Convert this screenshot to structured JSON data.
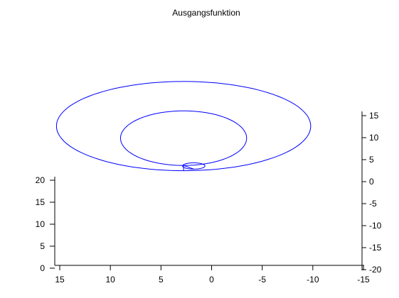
{
  "chart_data": {
    "type": "line",
    "title": "Ausgangsfunktion",
    "projection": "3d",
    "axes": {
      "x": {
        "ticks": [
          15,
          10,
          5,
          0,
          -5,
          -10,
          -15
        ],
        "range": [
          15,
          -15
        ]
      },
      "y": {
        "ticks": [
          0,
          5,
          10,
          15,
          20
        ],
        "range": [
          0,
          20
        ]
      },
      "z": {
        "ticks": [
          15,
          10,
          5,
          0,
          -5,
          -10,
          -15,
          -20
        ],
        "range": [
          -20,
          15
        ]
      }
    },
    "series": [
      {
        "color": "#0000ff",
        "description": "spiral curve (outer loop, middle loop, inner loop)",
        "outer_loop": {
          "center_x": 2.3,
          "rx": 12.5,
          "center_z": 9.5,
          "rz": 8.5
        },
        "middle_loop": {
          "center_x": 2.3,
          "rx": 6.2,
          "center_z": 7.2,
          "rz": 5.2
        },
        "inner_loop": {
          "center_x": 1.3,
          "rx": 1.1,
          "center_z": 1.9,
          "rz": 0.6
        }
      }
    ],
    "grid": false,
    "legend": "none"
  }
}
